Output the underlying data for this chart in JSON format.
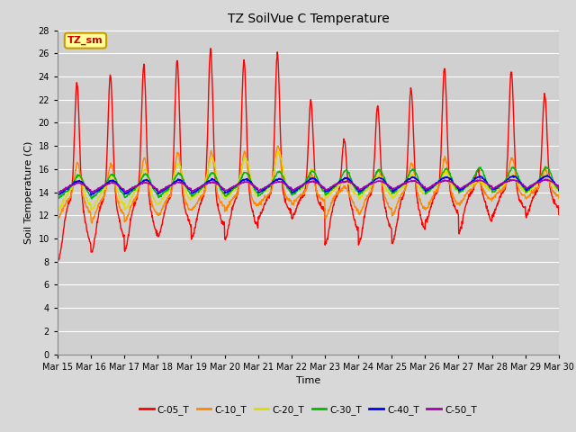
{
  "title": "TZ SoilVue C Temperature",
  "ylabel": "Soil Temperature (C)",
  "xlabel": "Time",
  "annotation": "TZ_sm",
  "ylim": [
    0,
    28
  ],
  "yticks": [
    0,
    2,
    4,
    6,
    8,
    10,
    12,
    14,
    16,
    18,
    20,
    22,
    24,
    26,
    28
  ],
  "n_days": 15,
  "x_labels": [
    "Mar 15",
    "Mar 16",
    "Mar 17",
    "Mar 18",
    "Mar 19",
    "Mar 20",
    "Mar 21",
    "Mar 22",
    "Mar 23",
    "Mar 24",
    "Mar 25",
    "Mar 26",
    "Mar 27",
    "Mar 28",
    "Mar 29",
    "Mar 30"
  ],
  "series": {
    "C-05_T": {
      "color": "#ff0000",
      "linewidth": 1.0
    },
    "C-10_T": {
      "color": "#ff8800",
      "linewidth": 1.0
    },
    "C-20_T": {
      "color": "#dddd00",
      "linewidth": 1.0
    },
    "C-30_T": {
      "color": "#00bb00",
      "linewidth": 1.0
    },
    "C-40_T": {
      "color": "#0000ff",
      "linewidth": 1.0
    },
    "C-50_T": {
      "color": "#aa00aa",
      "linewidth": 1.0
    }
  },
  "background_color": "#d8d8d8",
  "plot_bg_color": "#d0d0d0",
  "grid_color": "#ffffff",
  "annotation_bg": "#ffff99",
  "annotation_border": "#cc9900",
  "figsize": [
    6.4,
    4.8
  ],
  "dpi": 100
}
